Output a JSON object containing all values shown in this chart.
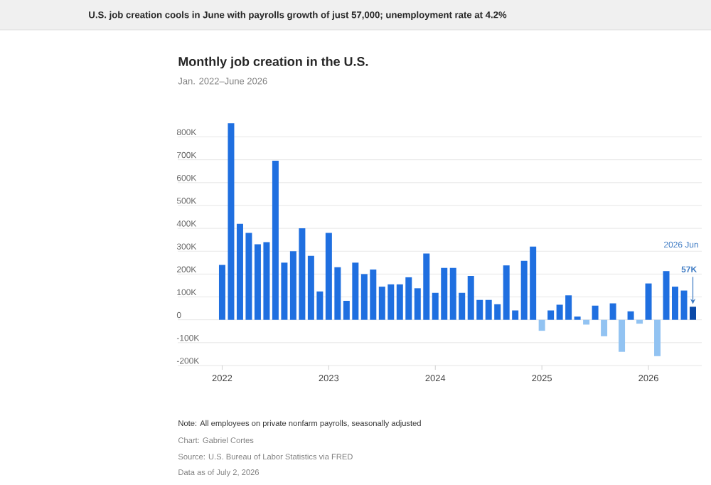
{
  "chart_data": {
    "type": "bar",
    "title": "Monthly job creation in the U.S.",
    "subtitle": "Jan. 2022–June 2026",
    "x": [
      "2022-01",
      "2022-02",
      "2022-03",
      "2022-04",
      "2022-05",
      "2022-06",
      "2022-07",
      "2022-08",
      "2022-09",
      "2022-10",
      "2022-11",
      "2022-12",
      "2023-01",
      "2023-02",
      "2023-03",
      "2023-04",
      "2023-05",
      "2023-06",
      "2023-07",
      "2023-08",
      "2023-09",
      "2023-10",
      "2023-11",
      "2023-12",
      "2024-01",
      "2024-02",
      "2024-03",
      "2024-04",
      "2024-05",
      "2024-06",
      "2024-07",
      "2024-08",
      "2024-09",
      "2024-10",
      "2024-11",
      "2024-12",
      "2025-01",
      "2025-02",
      "2025-03",
      "2025-04",
      "2025-05",
      "2025-06",
      "2025-07",
      "2025-08",
      "2025-09",
      "2025-10",
      "2025-11",
      "2025-12",
      "2026-01",
      "2026-02",
      "2026-03",
      "2026-04",
      "2026-05",
      "2026-06"
    ],
    "values": [
      240,
      860,
      420,
      380,
      330,
      340,
      696,
      250,
      300,
      400,
      280,
      124,
      380,
      230,
      83,
      250,
      200,
      220,
      145,
      155,
      155,
      186,
      138,
      290,
      118,
      227,
      227,
      118,
      192,
      87,
      87,
      68,
      238,
      41,
      258,
      320,
      -48,
      41,
      66,
      107,
      14,
      -21,
      62,
      -72,
      72,
      -140,
      37,
      -17,
      159,
      -159,
      213,
      145,
      128,
      57
    ],
    "colors": [
      "#1f6fe0",
      "#1f6fe0",
      "#1f6fe0",
      "#1f6fe0",
      "#1f6fe0",
      "#1f6fe0",
      "#1f6fe0",
      "#1f6fe0",
      "#1f6fe0",
      "#1f6fe0",
      "#1f6fe0",
      "#1f6fe0",
      "#1f6fe0",
      "#1f6fe0",
      "#1f6fe0",
      "#1f6fe0",
      "#1f6fe0",
      "#1f6fe0",
      "#1f6fe0",
      "#1f6fe0",
      "#1f6fe0",
      "#1f6fe0",
      "#1f6fe0",
      "#1f6fe0",
      "#1f6fe0",
      "#1f6fe0",
      "#1f6fe0",
      "#1f6fe0",
      "#1f6fe0",
      "#1f6fe0",
      "#1f6fe0",
      "#1f6fe0",
      "#1f6fe0",
      "#1f6fe0",
      "#1f6fe0",
      "#1f6fe0",
      "#92c3f2",
      "#1f6fe0",
      "#1f6fe0",
      "#1f6fe0",
      "#1f6fe0",
      "#92c3f2",
      "#1f6fe0",
      "#92c3f2",
      "#1f6fe0",
      "#92c3f2",
      "#1f6fe0",
      "#92c3f2",
      "#1f6fe0",
      "#92c3f2",
      "#1f6fe0",
      "#1f6fe0",
      "#1f6fe0",
      "#0b4aa8"
    ],
    "xlim": [
      "2021-08",
      "2026-07"
    ],
    "xticks": [
      {
        "value": "2022-01",
        "label": "2022"
      },
      {
        "value": "2023-01",
        "label": "2023"
      },
      {
        "value": "2024-01",
        "label": "2024"
      },
      {
        "value": "2025-01",
        "label": "2025"
      },
      {
        "value": "2026-01",
        "label": "2026"
      }
    ],
    "ylim": [
      -200,
      870
    ],
    "yticks": [
      {
        "value": -200,
        "label": "-200K"
      },
      {
        "value": -100,
        "label": "-100K"
      },
      0,
      {
        "value": 100,
        "label": "100K"
      },
      {
        "value": 200,
        "label": "200K"
      },
      {
        "value": 300,
        "label": "300K"
      },
      {
        "value": 400,
        "label": "400K"
      },
      {
        "value": 500,
        "label": "500K"
      },
      {
        "value": 600,
        "label": "600K"
      },
      {
        "value": 700,
        "label": "700K"
      },
      {
        "value": 800,
        "label": "800K"
      }
    ],
    "grid": "y",
    "annotations": [
      "U.S. job creation cools in June with payrolls growth of just 57,000; unemployment rate at 4.2%",
      "Note: All employees on private nonfarm payrolls, seasonally adjusted",
      "Chart: Gabriel Cortes",
      "Source: U.S. Bureau of Labor Statistics via FRED",
      "Data as of July 2, 2026",
      "2026 Jun",
      {
        "text": "57K",
        "x": "2026-06",
        "y": 57
      }
    ]
  }
}
